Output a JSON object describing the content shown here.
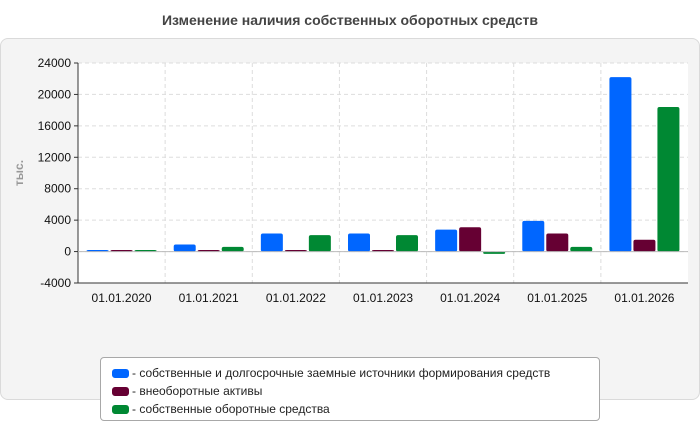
{
  "chart_data": {
    "type": "bar",
    "title": "Изменение наличия собственных оборотных средств",
    "ylabel": "тыс.",
    "xlabel": "",
    "ylim": [
      -4000,
      24000
    ],
    "yticks": [
      24000,
      20000,
      16000,
      12000,
      8000,
      4000,
      0,
      -4000
    ],
    "grid": true,
    "legend_position": "bottom",
    "categories": [
      "01.01.2020",
      "01.01.2021",
      "01.01.2022",
      "01.01.2023",
      "01.01.2024",
      "01.01.2025",
      "01.01.2026"
    ],
    "series": [
      {
        "name": "- собственные и долгосрочные заемные источники формирования средств",
        "color": "#0066ff",
        "values": [
          200,
          900,
          2300,
          2300,
          2800,
          3900,
          22200
        ]
      },
      {
        "name": "- внеоборотные активы",
        "color": "#660033",
        "values": [
          200,
          200,
          200,
          200,
          3100,
          2300,
          1500
        ]
      },
      {
        "name": "- собственные оборотные средства",
        "color": "#008833",
        "values": [
          200,
          600,
          2100,
          2100,
          -300,
          600,
          18400
        ]
      }
    ]
  }
}
